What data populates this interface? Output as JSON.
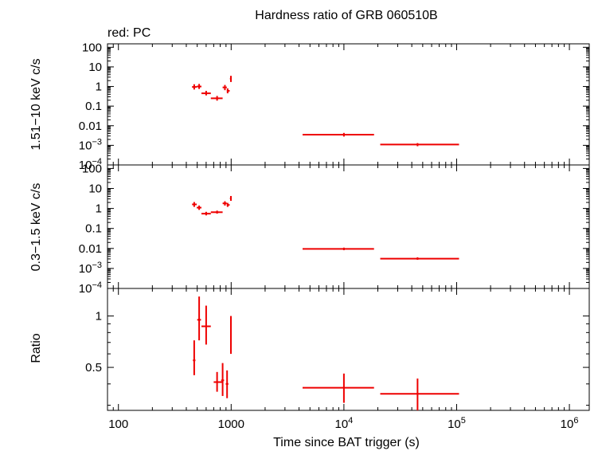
{
  "title": "Hardness ratio of GRB 060510B",
  "subtitle": "red: PC",
  "xlabel": "Time since BAT trigger (s)",
  "colors": {
    "data": "#ee0000",
    "axes": "#000000"
  },
  "chart_data": [
    {
      "type": "scatter",
      "ylabel": "1.51−10 keV c/s",
      "xscale": "log",
      "yscale": "log",
      "xlim": [
        80,
        1500000
      ],
      "ylim": [
        0.0001,
        150
      ],
      "ytick_labels": [
        {
          "v": 100,
          "t": "100"
        },
        {
          "v": 10,
          "t": "10"
        },
        {
          "v": 1,
          "t": "1"
        },
        {
          "v": 0.1,
          "t": "0.1"
        },
        {
          "v": 0.01,
          "t": "0.01"
        },
        {
          "v": 0.001,
          "b": "10",
          "e": "−3"
        },
        {
          "v": 0.0001,
          "b": "10",
          "e": "−4"
        }
      ],
      "points": [
        {
          "x": 470,
          "xlo": 450,
          "xhi": 495,
          "y": 0.95,
          "ylo": 0.7,
          "yhi": 1.3
        },
        {
          "x": 520,
          "xlo": 495,
          "xhi": 545,
          "y": 1.0,
          "ylo": 0.75,
          "yhi": 1.35
        },
        {
          "x": 600,
          "xlo": 545,
          "xhi": 660,
          "y": 0.45,
          "ylo": 0.35,
          "yhi": 0.6
        },
        {
          "x": 750,
          "xlo": 660,
          "xhi": 840,
          "y": 0.25,
          "ylo": 0.19,
          "yhi": 0.33
        },
        {
          "x": 880,
          "xlo": 840,
          "xhi": 915,
          "y": 0.9,
          "ylo": 0.65,
          "yhi": 1.2
        },
        {
          "x": 930,
          "xlo": 915,
          "xhi": 970,
          "y": 0.6,
          "ylo": 0.45,
          "yhi": 0.8
        },
        {
          "x": 995,
          "xlo": 975,
          "xhi": 1010,
          "y": 2.5,
          "ylo": 1.7,
          "yhi": 3.5
        },
        {
          "x": 10000,
          "xlo": 4300,
          "xhi": 18500,
          "y": 0.0035,
          "ylo": 0.0028,
          "yhi": 0.0043
        },
        {
          "x": 45000,
          "xlo": 21000,
          "xhi": 105000,
          "y": 0.0011,
          "ylo": 0.0009,
          "yhi": 0.0013
        }
      ]
    },
    {
      "type": "scatter",
      "ylabel": "0.3−1.5 keV c/s",
      "xscale": "log",
      "yscale": "log",
      "xlim": [
        80,
        1500000
      ],
      "ylim": [
        0.0001,
        150
      ],
      "ytick_labels": [
        {
          "v": 100,
          "t": "100"
        },
        {
          "v": 10,
          "t": "10"
        },
        {
          "v": 1,
          "t": "1"
        },
        {
          "v": 0.1,
          "t": "0.1"
        },
        {
          "v": 0.01,
          "t": "0.01"
        },
        {
          "v": 0.001,
          "b": "10",
          "e": "−3"
        },
        {
          "v": 0.0001,
          "b": "10",
          "e": "−4"
        }
      ],
      "points": [
        {
          "x": 470,
          "xlo": 450,
          "xhi": 495,
          "y": 1.6,
          "ylo": 1.2,
          "yhi": 2.1
        },
        {
          "x": 520,
          "xlo": 495,
          "xhi": 545,
          "y": 1.1,
          "ylo": 0.85,
          "yhi": 1.4
        },
        {
          "x": 600,
          "xlo": 545,
          "xhi": 660,
          "y": 0.55,
          "ylo": 0.45,
          "yhi": 0.68
        },
        {
          "x": 750,
          "xlo": 660,
          "xhi": 840,
          "y": 0.65,
          "ylo": 0.55,
          "yhi": 0.78
        },
        {
          "x": 880,
          "xlo": 840,
          "xhi": 915,
          "y": 1.8,
          "ylo": 1.4,
          "yhi": 2.3
        },
        {
          "x": 930,
          "xlo": 915,
          "xhi": 970,
          "y": 1.5,
          "ylo": 1.2,
          "yhi": 1.9
        },
        {
          "x": 995,
          "xlo": 975,
          "xhi": 1010,
          "y": 3.2,
          "ylo": 2.4,
          "yhi": 4.2
        },
        {
          "x": 10000,
          "xlo": 4300,
          "xhi": 18500,
          "y": 0.0095,
          "ylo": 0.0082,
          "yhi": 0.011
        },
        {
          "x": 45000,
          "xlo": 21000,
          "xhi": 105000,
          "y": 0.0031,
          "ylo": 0.0027,
          "yhi": 0.0036
        }
      ]
    },
    {
      "type": "scatter",
      "ylabel": "Ratio",
      "xscale": "log",
      "yscale": "log",
      "xlim": [
        80,
        1500000
      ],
      "ylim": [
        0.28,
        1.45
      ],
      "ytick_labels": [
        {
          "v": 1,
          "t": "1"
        },
        {
          "v": 0.5,
          "t": "0.5"
        }
      ],
      "points": [
        {
          "x": 470,
          "xlo": 458,
          "xhi": 482,
          "y": 0.55,
          "ylo": 0.45,
          "yhi": 0.72
        },
        {
          "x": 520,
          "xlo": 500,
          "xhi": 540,
          "y": 0.95,
          "ylo": 0.72,
          "yhi": 1.3
        },
        {
          "x": 600,
          "xlo": 545,
          "xhi": 660,
          "y": 0.87,
          "ylo": 0.68,
          "yhi": 1.15
        },
        {
          "x": 750,
          "xlo": 700,
          "xhi": 850,
          "y": 0.41,
          "ylo": 0.36,
          "yhi": 0.47
        },
        {
          "x": 840,
          "xlo": 815,
          "xhi": 865,
          "y": 0.42,
          "ylo": 0.34,
          "yhi": 0.53
        },
        {
          "x": 920,
          "xlo": 895,
          "xhi": 945,
          "y": 0.4,
          "ylo": 0.33,
          "yhi": 0.48
        },
        {
          "x": 995,
          "xlo": 985,
          "xhi": 1005,
          "y": 0.78,
          "ylo": 0.6,
          "yhi": 1.0
        },
        {
          "x": 10000,
          "xlo": 4300,
          "xhi": 18500,
          "y": 0.38,
          "ylo": 0.31,
          "yhi": 0.46
        },
        {
          "x": 45000,
          "xlo": 21000,
          "xhi": 105000,
          "y": 0.35,
          "ylo": 0.28,
          "yhi": 0.43
        }
      ]
    }
  ],
  "xtick_labels": [
    {
      "v": 100,
      "t": "100"
    },
    {
      "v": 1000,
      "t": "1000"
    },
    {
      "v": 10000,
      "b": "10",
      "e": "4"
    },
    {
      "v": 100000,
      "b": "10",
      "e": "5"
    },
    {
      "v": 1000000,
      "b": "10",
      "e": "6"
    }
  ]
}
